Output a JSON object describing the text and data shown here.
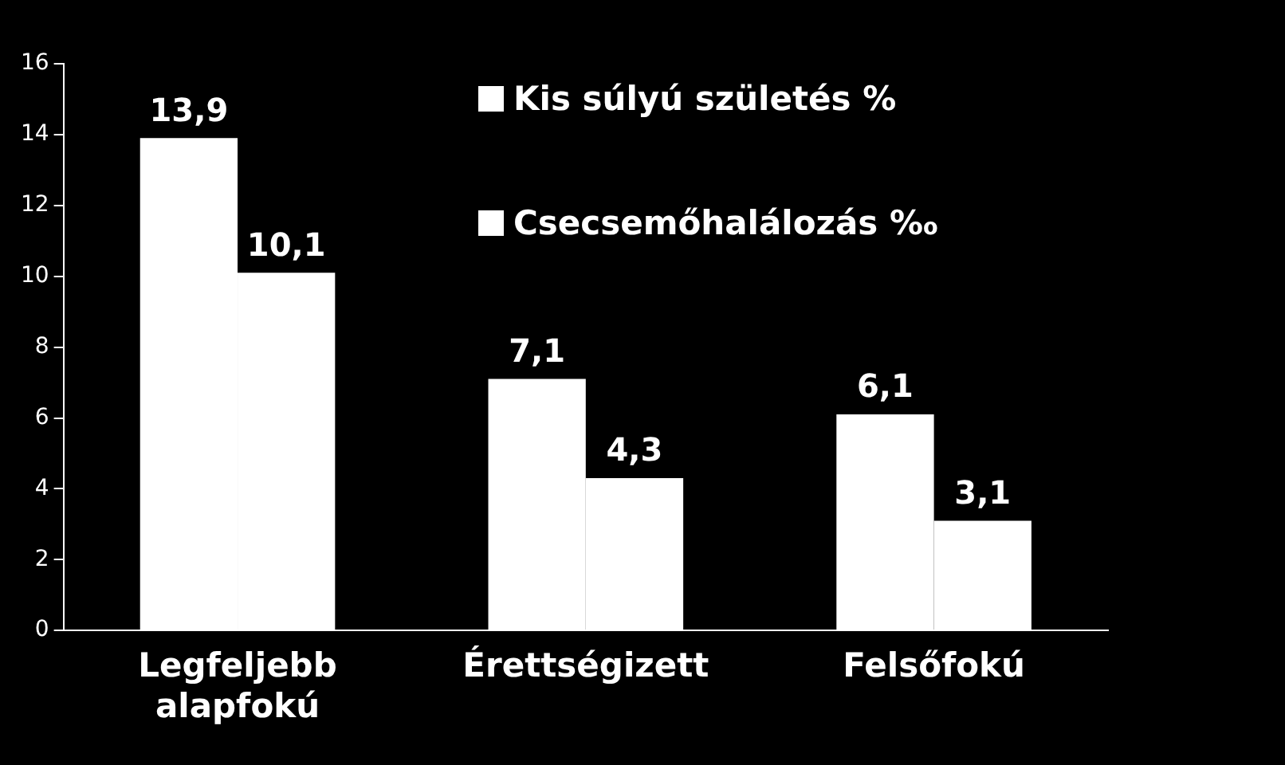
{
  "chart_data": {
    "type": "bar",
    "categories": [
      "Legfeljebb alapfokú",
      "Érettségizett",
      "Felsőfokú"
    ],
    "series": [
      {
        "name": "Kis súlyú születés %",
        "color": "#ffffff",
        "values": [
          13.9,
          7.1,
          6.1
        ],
        "value_labels": [
          "13,9",
          "7,1",
          "6,1"
        ]
      },
      {
        "name": "Csecsemőhalálozás ‰",
        "color": "#ffffff",
        "values": [
          10.1,
          4.3,
          3.1
        ],
        "value_labels": [
          "10,1",
          "4,3",
          "3,1"
        ]
      }
    ],
    "ylim": [
      0,
      16
    ],
    "yticks": [
      0,
      2,
      4,
      6,
      8,
      10,
      12,
      14,
      16
    ],
    "grid": false,
    "legend": "top right"
  }
}
